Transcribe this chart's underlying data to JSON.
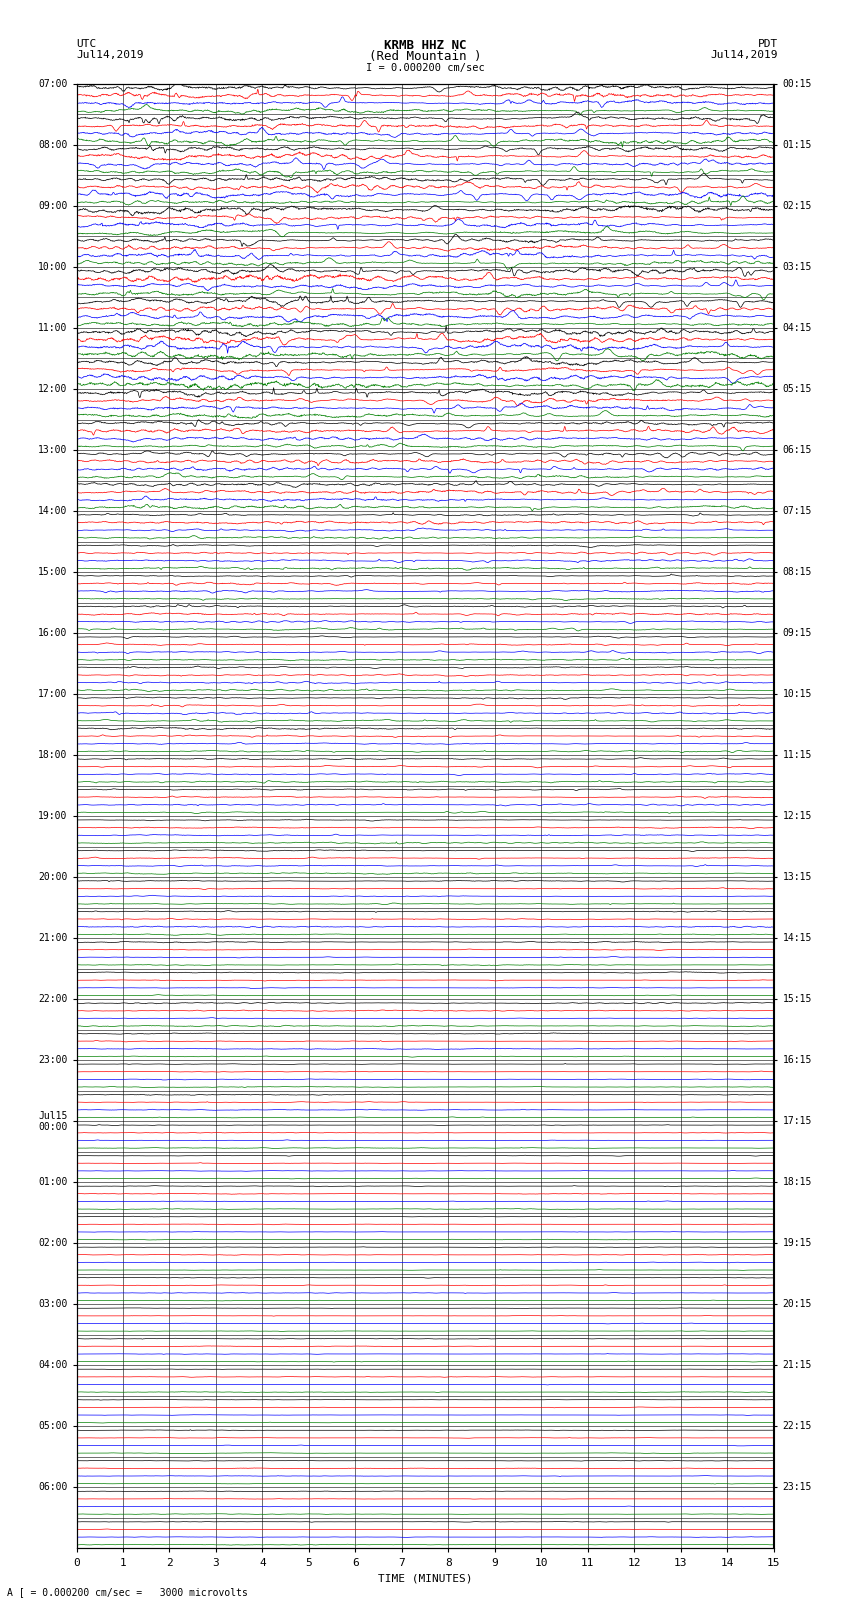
{
  "title_line1": "KRMB HHZ NC",
  "title_line2": "(Red Mountain )",
  "scale_label": "I = 0.000200 cm/sec",
  "utc_label": "UTC",
  "utc_date": "Jul14,2019",
  "pdt_label": "PDT",
  "pdt_date": "Jul14,2019",
  "xlabel": "TIME (MINUTES)",
  "bottom_label": "A [ = 0.000200 cm/sec =   3000 microvolts",
  "n_rows": 48,
  "colors": [
    "black",
    "red",
    "blue",
    "green"
  ],
  "background_color": "white",
  "left_times": [
    "07:00",
    "08:00",
    "09:00",
    "10:00",
    "11:00",
    "12:00",
    "13:00",
    "14:00",
    "15:00",
    "16:00",
    "17:00",
    "18:00",
    "19:00",
    "20:00",
    "21:00",
    "22:00",
    "23:00",
    "Jul15\n00:00",
    "01:00",
    "02:00",
    "03:00",
    "04:00",
    "05:00",
    "06:00"
  ],
  "right_times": [
    "00:15",
    "01:15",
    "02:15",
    "03:15",
    "04:15",
    "05:15",
    "06:15",
    "07:15",
    "08:15",
    "09:15",
    "10:15",
    "11:15",
    "12:15",
    "13:15",
    "14:15",
    "15:15",
    "16:15",
    "17:15",
    "18:15",
    "19:15",
    "20:15",
    "21:15",
    "22:15",
    "23:15"
  ]
}
